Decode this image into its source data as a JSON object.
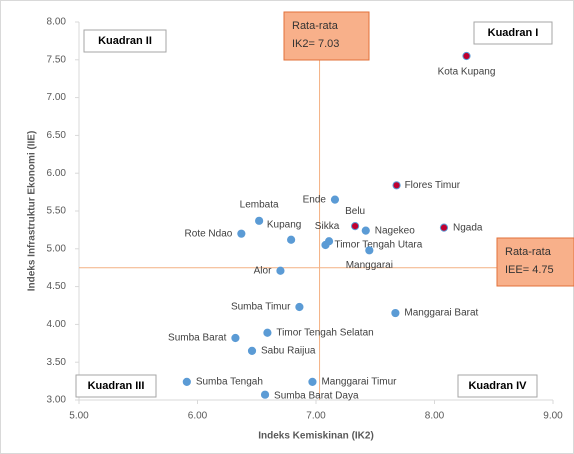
{
  "chart_data": {
    "type": "scatter",
    "x_label": "Indeks Kemiskinan (IK2)",
    "y_label": "Indeks Infrastruktur Ekonomi (IIE)",
    "xlim": [
      5,
      9
    ],
    "ylim": [
      3,
      8
    ],
    "xticks": [
      {
        "value": 5,
        "label": "5.00"
      },
      {
        "value": 6,
        "label": "6.00"
      },
      {
        "value": 7,
        "label": "7.00"
      },
      {
        "value": 8,
        "label": "8.00"
      },
      {
        "value": 9,
        "label": "9.00"
      }
    ],
    "yticks": [
      {
        "value": 3,
        "label": "3.00"
      },
      {
        "value": 3.5,
        "label": "3.50"
      },
      {
        "value": 4,
        "label": "4.00"
      },
      {
        "value": 4.5,
        "label": "4.50"
      },
      {
        "value": 5,
        "label": "5.00"
      },
      {
        "value": 5.5,
        "label": "5.50"
      },
      {
        "value": 6,
        "label": "6.00"
      },
      {
        "value": 6.5,
        "label": "6.50"
      },
      {
        "value": 7,
        "label": "7.00"
      },
      {
        "value": 7.5,
        "label": "7.50"
      },
      {
        "value": 8,
        "label": "8.00"
      }
    ],
    "points": [
      {
        "label": "Kota Kupang",
        "x": 8.27,
        "y": 7.55,
        "color": "#c00030"
      },
      {
        "label": "Flores Timur",
        "x": 7.68,
        "y": 5.84,
        "color": "#c00030"
      },
      {
        "label": "Ngada",
        "x": 8.08,
        "y": 5.28,
        "color": "#c00030"
      },
      {
        "label": "Belu",
        "x": 7.33,
        "y": 5.3,
        "color": "#c00030"
      },
      {
        "label": "Ende",
        "x": 7.16,
        "y": 5.65,
        "color": "#5b9bd5"
      },
      {
        "label": "Nagekeo",
        "x": 7.42,
        "y": 5.24,
        "color": "#5b9bd5"
      },
      {
        "label": "Lembata",
        "x": 6.52,
        "y": 5.37,
        "color": "#5b9bd5"
      },
      {
        "label": "Rote Ndao",
        "x": 6.37,
        "y": 5.2,
        "color": "#5b9bd5"
      },
      {
        "label": "Kupang",
        "x": 6.79,
        "y": 5.12,
        "color": "#5b9bd5"
      },
      {
        "label": "Sikka",
        "x": 7.11,
        "y": 5.1,
        "color": "#5b9bd5"
      },
      {
        "label": "Timor Tengah Utara",
        "x": 7.08,
        "y": 5.05,
        "color": "#5b9bd5"
      },
      {
        "label": "Manggarai",
        "x": 7.45,
        "y": 4.98,
        "color": "#5b9bd5"
      },
      {
        "label": "Alor",
        "x": 6.7,
        "y": 4.71,
        "color": "#5b9bd5"
      },
      {
        "label": "Sumba Timur",
        "x": 6.86,
        "y": 4.23,
        "color": "#5b9bd5"
      },
      {
        "label": "Manggarai Barat",
        "x": 7.67,
        "y": 4.15,
        "color": "#5b9bd5"
      },
      {
        "label": "Timor Tengah Selatan",
        "x": 6.59,
        "y": 3.89,
        "color": "#5b9bd5"
      },
      {
        "label": "Sumba Barat",
        "x": 6.32,
        "y": 3.82,
        "color": "#5b9bd5"
      },
      {
        "label": "Sabu Raijua",
        "x": 6.46,
        "y": 3.65,
        "color": "#5b9bd5"
      },
      {
        "label": "Sumba Tengah",
        "x": 5.91,
        "y": 3.24,
        "color": "#5b9bd5"
      },
      {
        "label": "Manggarai Timur",
        "x": 6.97,
        "y": 3.24,
        "color": "#5b9bd5"
      },
      {
        "label": "Sumba Barat Daya",
        "x": 6.57,
        "y": 3.07,
        "color": "#5b9bd5"
      }
    ],
    "reference_lines": [
      {
        "axis": "x",
        "value": 7.03,
        "lines": [
          "Rata-rata",
          "IK2= 7.03"
        ]
      },
      {
        "axis": "y",
        "value": 4.75,
        "lines": [
          "Rata-rata",
          "IEE= 4.75"
        ]
      }
    ],
    "quadrants": [
      "Kuadran I",
      "Kuadran II",
      "Kuadran III",
      "Kuadran IV"
    ]
  }
}
